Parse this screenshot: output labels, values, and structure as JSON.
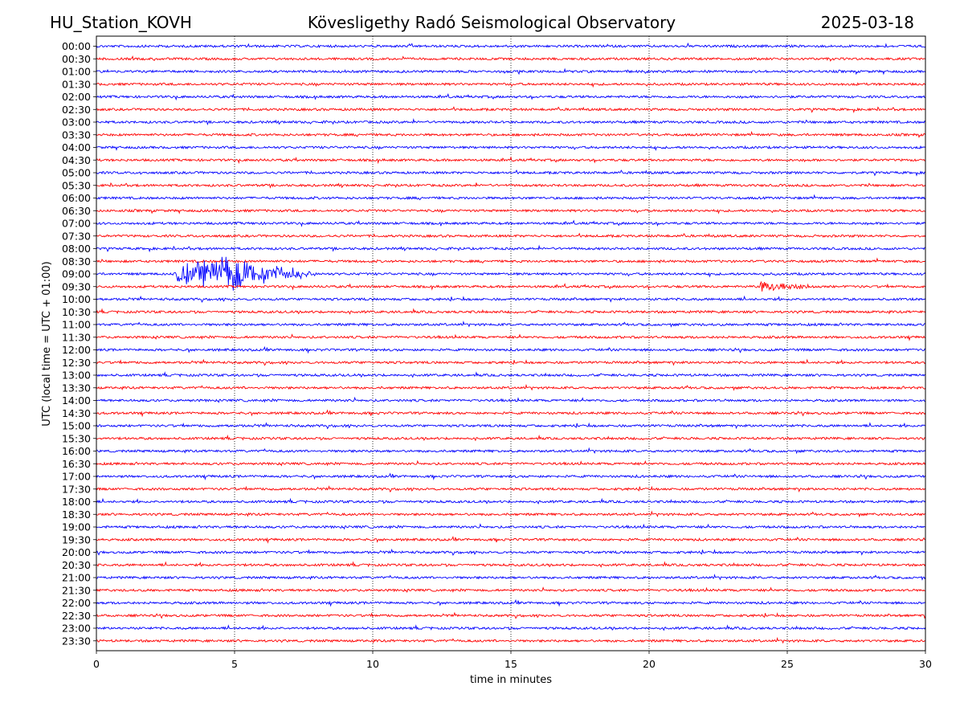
{
  "header": {
    "station": "HU_Station_KOVH",
    "observatory": "Kövesligethy Radó Seismological Observatory",
    "date": "2025-03-18"
  },
  "chart_data": {
    "type": "line",
    "title": "Kövesligethy Radó Seismological Observatory",
    "xlabel": "time in minutes",
    "ylabel": "UTC (local time = UTC + 01:00)",
    "xlim": [
      0,
      30
    ],
    "xticks": [
      0,
      5,
      10,
      15,
      20,
      25,
      30
    ],
    "grid_x": true,
    "series_colors": [
      "#0000ff",
      "#ff0000"
    ],
    "rows": [
      "00:00",
      "00:30",
      "01:00",
      "01:30",
      "02:00",
      "02:30",
      "03:00",
      "03:30",
      "04:00",
      "04:30",
      "05:00",
      "05:30",
      "06:00",
      "06:30",
      "07:00",
      "07:30",
      "08:00",
      "08:30",
      "09:00",
      "09:30",
      "10:00",
      "10:30",
      "11:00",
      "11:30",
      "12:00",
      "12:30",
      "13:00",
      "13:30",
      "14:00",
      "14:30",
      "15:00",
      "15:30",
      "16:00",
      "16:30",
      "17:00",
      "17:30",
      "18:00",
      "18:30",
      "19:00",
      "19:30",
      "20:00",
      "20:30",
      "21:00",
      "21:30",
      "22:00",
      "22:30",
      "23:00",
      "23:30"
    ],
    "events": [
      {
        "row": "09:00",
        "start_min": 2.8,
        "peak_min": 5.0,
        "end_min": 8.0,
        "relative_amplitude": 10
      },
      {
        "row": "09:30",
        "start_min": 24.0,
        "peak_min": 24.1,
        "end_min": 26.0,
        "relative_amplitude": 3
      }
    ]
  }
}
